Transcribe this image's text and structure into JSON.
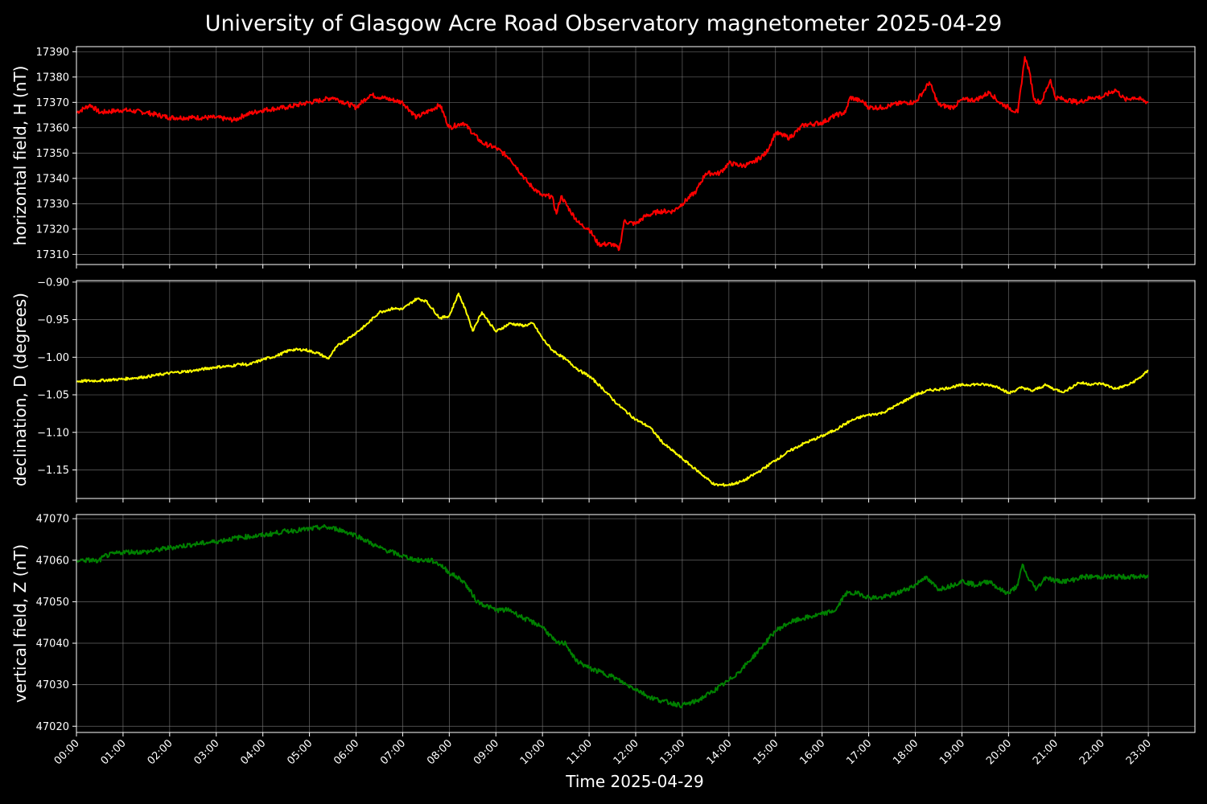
{
  "title": "University of Glasgow Acre Road Observatory magnetometer 2025-04-29",
  "xlabel": "Time 2025-04-29",
  "chart_data": {
    "type": "line",
    "grid": true,
    "background": "#000000",
    "grid_color": "#808080",
    "x_tick_labels": [
      "00:00",
      "01:00",
      "02:00",
      "03:00",
      "04:00",
      "05:00",
      "06:00",
      "07:00",
      "08:00",
      "09:00",
      "10:00",
      "11:00",
      "12:00",
      "13:00",
      "14:00",
      "15:00",
      "16:00",
      "17:00",
      "18:00",
      "19:00",
      "20:00",
      "21:00",
      "22:00",
      "23:00"
    ],
    "xlim_hours": [
      0,
      24
    ],
    "panels": [
      {
        "ylabel": "horizontal field, H (nT)",
        "color": "#ff0000",
        "ylim": [
          17306,
          17392
        ],
        "yticks": [
          17310,
          17320,
          17330,
          17340,
          17350,
          17360,
          17370,
          17380,
          17390
        ],
        "ytick_labels": [
          "17310",
          "17320",
          "17330",
          "17340",
          "17350",
          "17360",
          "17370",
          "17380",
          "17390"
        ],
        "points": [
          [
            0,
            17366
          ],
          [
            0.3,
            17369
          ],
          [
            0.5,
            17366
          ],
          [
            1,
            17367
          ],
          [
            1.5,
            17366
          ],
          [
            2,
            17364
          ],
          [
            2.5,
            17364
          ],
          [
            3,
            17364
          ],
          [
            3.4,
            17363
          ],
          [
            3.6,
            17365
          ],
          [
            4,
            17367
          ],
          [
            4.5,
            17368
          ],
          [
            5,
            17370
          ],
          [
            5.3,
            17371
          ],
          [
            5.5,
            17372
          ],
          [
            6,
            17368
          ],
          [
            6.3,
            17373
          ],
          [
            7,
            17370
          ],
          [
            7.3,
            17364
          ],
          [
            7.5,
            17366
          ],
          [
            7.8,
            17369
          ],
          [
            8,
            17360
          ],
          [
            8.3,
            17362
          ],
          [
            8.7,
            17354
          ],
          [
            9,
            17352
          ],
          [
            9.3,
            17348
          ],
          [
            9.7,
            17338
          ],
          [
            10,
            17333
          ],
          [
            10.2,
            17333
          ],
          [
            10.3,
            17326
          ],
          [
            10.4,
            17333
          ],
          [
            10.6,
            17327
          ],
          [
            10.8,
            17322
          ],
          [
            11,
            17320
          ],
          [
            11.2,
            17314
          ],
          [
            11.5,
            17314
          ],
          [
            11.65,
            17312
          ],
          [
            11.75,
            17323
          ],
          [
            12,
            17322
          ],
          [
            12.2,
            17325
          ],
          [
            12.5,
            17327
          ],
          [
            12.8,
            17327
          ],
          [
            13,
            17330
          ],
          [
            13.3,
            17335
          ],
          [
            13.5,
            17342
          ],
          [
            13.8,
            17342
          ],
          [
            14,
            17346
          ],
          [
            14.3,
            17345
          ],
          [
            14.5,
            17346
          ],
          [
            14.8,
            17350
          ],
          [
            15,
            17358
          ],
          [
            15.3,
            17356
          ],
          [
            15.6,
            17361
          ],
          [
            16,
            17362
          ],
          [
            16.3,
            17365
          ],
          [
            16.5,
            17366
          ],
          [
            16.6,
            17372
          ],
          [
            16.9,
            17370
          ],
          [
            17,
            17368
          ],
          [
            17.3,
            17368
          ],
          [
            17.5,
            17369
          ],
          [
            17.8,
            17370
          ],
          [
            18,
            17370
          ],
          [
            18.2,
            17375
          ],
          [
            18.3,
            17378
          ],
          [
            18.5,
            17369
          ],
          [
            18.8,
            17368
          ],
          [
            19,
            17371
          ],
          [
            19.3,
            17371
          ],
          [
            19.6,
            17374
          ],
          [
            19.8,
            17370
          ],
          [
            20,
            17368
          ],
          [
            20.2,
            17366
          ],
          [
            20.35,
            17388
          ],
          [
            20.45,
            17382
          ],
          [
            20.55,
            17371
          ],
          [
            20.7,
            17370
          ],
          [
            20.9,
            17379
          ],
          [
            21,
            17372
          ],
          [
            21.5,
            17370
          ],
          [
            21.8,
            17372
          ],
          [
            22,
            17372
          ],
          [
            22.3,
            17375
          ],
          [
            22.5,
            17371
          ],
          [
            22.7,
            17372
          ],
          [
            23,
            17370
          ]
        ]
      },
      {
        "ylabel": "declination, D (degrees)",
        "color": "#ffff00",
        "ylim": [
          -1.188,
          -0.898
        ],
        "yticks": [
          -1.15,
          -1.1,
          -1.05,
          -1.0,
          -0.95,
          -0.9
        ],
        "ytick_labels": [
          "−1.15",
          "−1.10",
          "−1.05",
          "−1.00",
          "−0.95",
          "−0.90"
        ],
        "points": [
          [
            0,
            -1.032
          ],
          [
            0.5,
            -1.031
          ],
          [
            1,
            -1.029
          ],
          [
            1.5,
            -1.026
          ],
          [
            2,
            -1.021
          ],
          [
            2.5,
            -1.018
          ],
          [
            3,
            -1.013
          ],
          [
            3.3,
            -1.012
          ],
          [
            3.5,
            -1.009
          ],
          [
            3.7,
            -1.01
          ],
          [
            4,
            -1.003
          ],
          [
            4.3,
            -0.998
          ],
          [
            4.6,
            -0.99
          ],
          [
            4.9,
            -0.99
          ],
          [
            5.2,
            -0.995
          ],
          [
            5.4,
            -1.002
          ],
          [
            5.6,
            -0.985
          ],
          [
            5.9,
            -0.972
          ],
          [
            6.2,
            -0.958
          ],
          [
            6.5,
            -0.94
          ],
          [
            6.8,
            -0.935
          ],
          [
            7,
            -0.936
          ],
          [
            7.3,
            -0.922
          ],
          [
            7.5,
            -0.925
          ],
          [
            7.8,
            -0.948
          ],
          [
            8,
            -0.945
          ],
          [
            8.2,
            -0.915
          ],
          [
            8.4,
            -0.945
          ],
          [
            8.5,
            -0.965
          ],
          [
            8.7,
            -0.94
          ],
          [
            9,
            -0.966
          ],
          [
            9.3,
            -0.955
          ],
          [
            9.6,
            -0.958
          ],
          [
            9.8,
            -0.955
          ],
          [
            10,
            -0.975
          ],
          [
            10.2,
            -0.99
          ],
          [
            10.5,
            -1.003
          ],
          [
            10.8,
            -1.018
          ],
          [
            11,
            -1.025
          ],
          [
            11.3,
            -1.042
          ],
          [
            11.6,
            -1.062
          ],
          [
            12,
            -1.083
          ],
          [
            12.3,
            -1.093
          ],
          [
            12.6,
            -1.115
          ],
          [
            13,
            -1.135
          ],
          [
            13.3,
            -1.15
          ],
          [
            13.7,
            -1.17
          ],
          [
            14,
            -1.17
          ],
          [
            14.3,
            -1.165
          ],
          [
            14.7,
            -1.15
          ],
          [
            15,
            -1.137
          ],
          [
            15.3,
            -1.125
          ],
          [
            15.6,
            -1.115
          ],
          [
            16,
            -1.105
          ],
          [
            16.3,
            -1.096
          ],
          [
            16.6,
            -1.085
          ],
          [
            16.9,
            -1.078
          ],
          [
            17.3,
            -1.074
          ],
          [
            17.6,
            -1.064
          ],
          [
            18,
            -1.05
          ],
          [
            18.3,
            -1.044
          ],
          [
            18.6,
            -1.042
          ],
          [
            19,
            -1.037
          ],
          [
            19.3,
            -1.036
          ],
          [
            19.6,
            -1.037
          ],
          [
            19.8,
            -1.04
          ],
          [
            20,
            -1.048
          ],
          [
            20.3,
            -1.04
          ],
          [
            20.5,
            -1.045
          ],
          [
            20.8,
            -1.037
          ],
          [
            21,
            -1.043
          ],
          [
            21.2,
            -1.046
          ],
          [
            21.5,
            -1.034
          ],
          [
            21.8,
            -1.036
          ],
          [
            22,
            -1.035
          ],
          [
            22.3,
            -1.042
          ],
          [
            22.6,
            -1.036
          ],
          [
            22.8,
            -1.028
          ],
          [
            23,
            -1.018
          ]
        ]
      },
      {
        "ylabel": "vertical field, Z (nT)",
        "color": "#008000",
        "ylim": [
          47018.5,
          47071
        ],
        "yticks": [
          47020,
          47030,
          47040,
          47050,
          47060,
          47070
        ],
        "ytick_labels": [
          "47020",
          "47030",
          "47040",
          "47050",
          "47060",
          "47070"
        ],
        "points": [
          [
            0,
            47060
          ],
          [
            0.4,
            47060
          ],
          [
            0.45,
            47059.5
          ],
          [
            0.6,
            47061
          ],
          [
            1,
            47062
          ],
          [
            1.5,
            47062
          ],
          [
            2,
            47063
          ],
          [
            2.5,
            47063.8
          ],
          [
            3,
            47064.5
          ],
          [
            3.5,
            47065.5
          ],
          [
            4,
            47066
          ],
          [
            4.5,
            47067
          ],
          [
            5,
            47067.5
          ],
          [
            5.3,
            47068
          ],
          [
            5.6,
            47067.5
          ],
          [
            6,
            47066
          ],
          [
            6.5,
            47063
          ],
          [
            7,
            47061
          ],
          [
            7.3,
            47060
          ],
          [
            7.6,
            47060
          ],
          [
            7.8,
            47059
          ],
          [
            8,
            47057
          ],
          [
            8.3,
            47055
          ],
          [
            8.6,
            47050
          ],
          [
            9,
            47048
          ],
          [
            9.3,
            47048
          ],
          [
            9.6,
            47046
          ],
          [
            10,
            47044
          ],
          [
            10.3,
            47040
          ],
          [
            10.5,
            47040
          ],
          [
            10.7,
            47036
          ],
          [
            11,
            47034
          ],
          [
            11.5,
            47032
          ],
          [
            11.8,
            47030
          ],
          [
            12,
            47029
          ],
          [
            12.3,
            47027
          ],
          [
            12.6,
            47026
          ],
          [
            13,
            47025
          ],
          [
            13.3,
            47026
          ],
          [
            13.6,
            47028
          ],
          [
            14,
            47031
          ],
          [
            14.3,
            47034
          ],
          [
            14.7,
            47039
          ],
          [
            15,
            47043
          ],
          [
            15.3,
            47045
          ],
          [
            15.6,
            47046
          ],
          [
            16,
            47047
          ],
          [
            16.3,
            47048
          ],
          [
            16.5,
            47052
          ],
          [
            16.8,
            47052
          ],
          [
            17,
            47051
          ],
          [
            17.3,
            47051
          ],
          [
            17.6,
            47052
          ],
          [
            18,
            47054
          ],
          [
            18.2,
            47056
          ],
          [
            18.5,
            47053
          ],
          [
            18.8,
            47054
          ],
          [
            19,
            47055
          ],
          [
            19.3,
            47054
          ],
          [
            19.6,
            47055
          ],
          [
            19.8,
            47053
          ],
          [
            20,
            47052
          ],
          [
            20.2,
            47054
          ],
          [
            20.3,
            47059
          ],
          [
            20.4,
            47056
          ],
          [
            20.6,
            47053
          ],
          [
            20.8,
            47056
          ],
          [
            21,
            47055
          ],
          [
            21.3,
            47055
          ],
          [
            21.6,
            47056
          ],
          [
            22,
            47056
          ],
          [
            22.5,
            47056
          ],
          [
            23,
            47056
          ]
        ]
      }
    ]
  }
}
